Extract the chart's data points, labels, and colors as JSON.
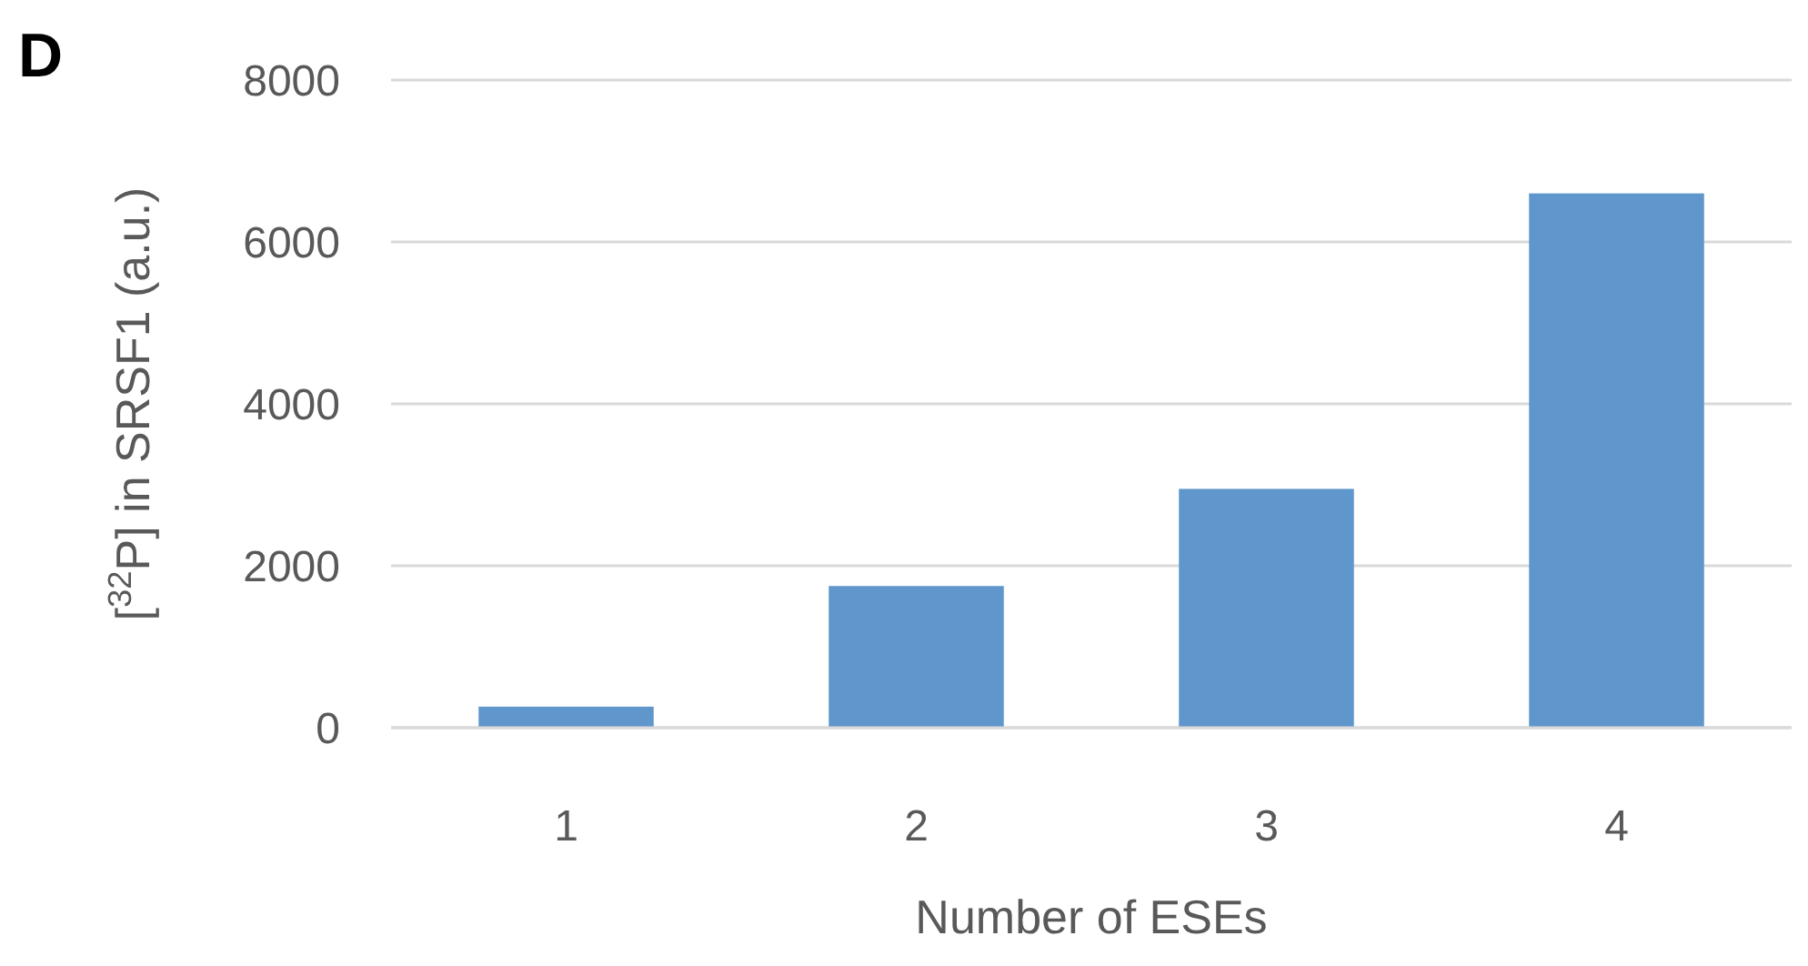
{
  "chart_data": {
    "type": "bar",
    "categories": [
      "1",
      "2",
      "3",
      "4"
    ],
    "values": [
      260,
      1750,
      2950,
      6600
    ],
    "color": "#5f96cb",
    "ylim": [
      0,
      8000
    ],
    "yticks": [
      0,
      2000,
      4000,
      6000,
      8000
    ],
    "grid": "y",
    "xlabel": "Number of ESEs",
    "ylabel": "[$^{32}$P] in SRSF1 (a.u.)",
    "annotations": [
      "D"
    ]
  }
}
